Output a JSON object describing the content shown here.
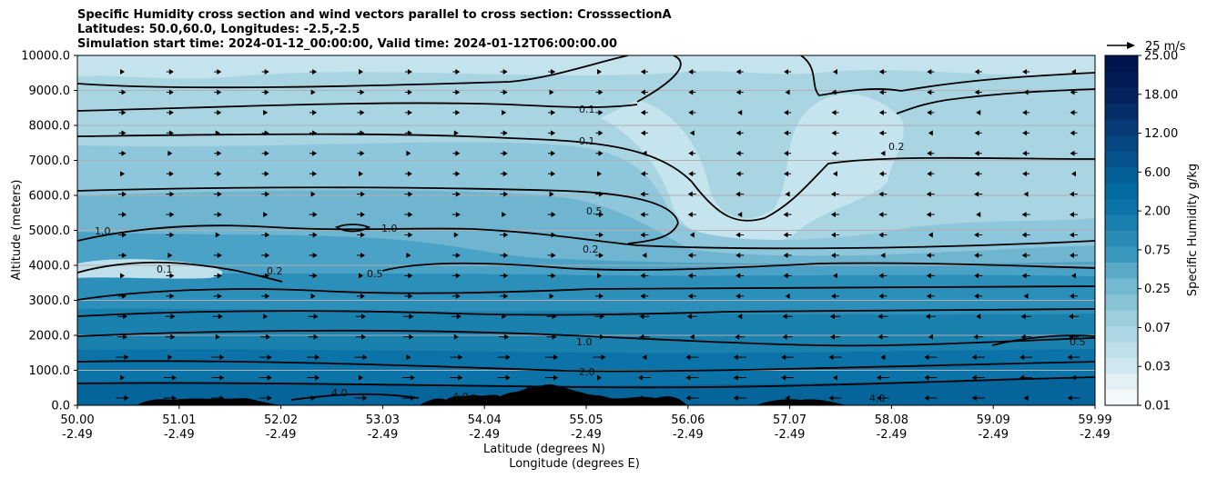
{
  "chart_data": {
    "type": "heatmap",
    "title_lines": [
      "Specific Humidity cross section and wind vectors parallel to cross section: CrosssectionA",
      "Latitudes: 50.0,60.0, Longitudes: -2.5,-2.5",
      "Simulation start time: 2024-01-12_00:00:00, Valid time: 2024-01-12T06:00:00.00"
    ],
    "ylabel": "Altitude (meters)",
    "xlabel_lat": "Latitude (degrees N)",
    "xlabel_lon": "Longitude (degrees E)",
    "ylim": [
      0,
      10000
    ],
    "y_ticks": [
      "0.0",
      "1000.0",
      "2000.0",
      "3000.0",
      "4000.0",
      "5000.0",
      "6000.0",
      "7000.0",
      "8000.0",
      "9000.0",
      "10000.0"
    ],
    "x_lat_ticks": [
      "50.00",
      "51.01",
      "52.02",
      "53.03",
      "54.04",
      "55.05",
      "56.06",
      "57.07",
      "58.08",
      "59.09",
      "59.99"
    ],
    "x_lon_ticks": [
      "-2.49",
      "-2.49",
      "-2.49",
      "-2.49",
      "-2.49",
      "-2.49",
      "-2.49",
      "-2.49",
      "-2.49",
      "-2.49",
      "-2.49"
    ],
    "colorbar": {
      "label": "Specific Humidity g/kg",
      "levels": [
        "0.01",
        "0.03",
        "0.07",
        "0.25",
        "0.75",
        "2.00",
        "6.00",
        "12.00",
        "18.00",
        "25.00"
      ],
      "colors": [
        "#f4fafc",
        "#e3f1f5",
        "#cfe7ee",
        "#bfdfe9",
        "#acd6e3",
        "#9ccedd",
        "#87c2d6",
        "#74b9d2",
        "#5aaac7",
        "#3a98bf",
        "#2a8cb6",
        "#1a7fae",
        "#0b73a7",
        "#036b9f",
        "#045f96",
        "#05528c",
        "#064681",
        "#073a76",
        "#062e6a",
        "#04235d",
        "#021b54",
        "#00154d"
      ]
    },
    "wind_key": "25 m/s",
    "contour_levels": [
      "0.1",
      "0.2",
      "0.5",
      "1.0",
      "2.0",
      "4.0"
    ]
  }
}
